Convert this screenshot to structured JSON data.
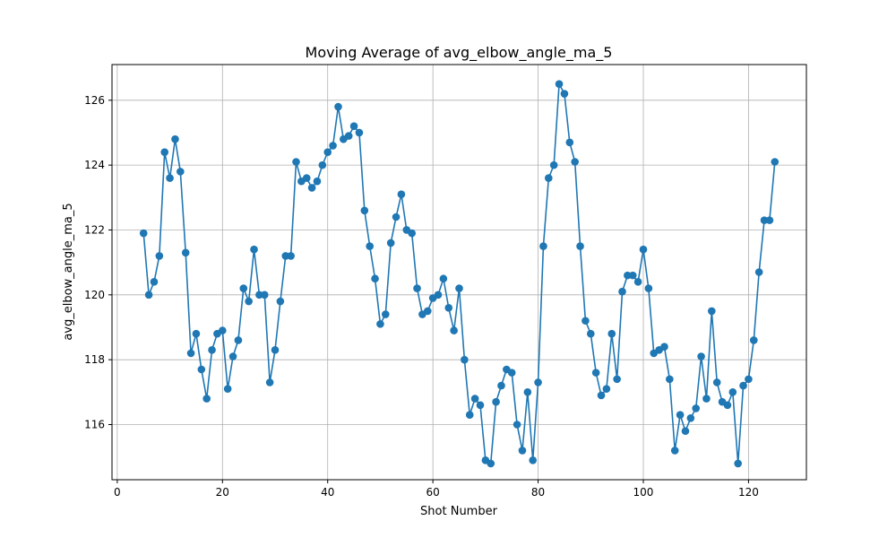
{
  "chart_data": {
    "type": "line",
    "title": "Moving Average of avg_elbow_angle_ma_5",
    "xlabel": "Shot Number",
    "ylabel": "avg_elbow_angle_ma_5",
    "xlim": [
      -1,
      131
    ],
    "ylim": [
      114.3,
      127.1
    ],
    "x_ticks": [
      0,
      20,
      40,
      60,
      80,
      100,
      120
    ],
    "y_ticks": [
      116,
      118,
      120,
      122,
      124,
      126
    ],
    "grid": true,
    "legend": "none",
    "line_color": "#1f77b4",
    "marker": "circle",
    "x": [
      5,
      6,
      7,
      8,
      9,
      10,
      11,
      12,
      13,
      14,
      15,
      16,
      17,
      18,
      19,
      20,
      21,
      22,
      23,
      24,
      25,
      26,
      27,
      28,
      29,
      30,
      31,
      32,
      33,
      34,
      35,
      36,
      37,
      38,
      39,
      40,
      41,
      42,
      43,
      44,
      45,
      46,
      47,
      48,
      49,
      50,
      51,
      52,
      53,
      54,
      55,
      56,
      57,
      58,
      59,
      60,
      61,
      62,
      63,
      64,
      65,
      66,
      67,
      68,
      69,
      70,
      71,
      72,
      73,
      74,
      75,
      76,
      77,
      78,
      79,
      80,
      81,
      82,
      83,
      84,
      85,
      86,
      87,
      88,
      89,
      90,
      91,
      92,
      93,
      94,
      95,
      96,
      97,
      98,
      99,
      100,
      101,
      102,
      103,
      104,
      105,
      106,
      107,
      108,
      109,
      110,
      111,
      112,
      113,
      114,
      115,
      116,
      117,
      118,
      119,
      120,
      121,
      122,
      123,
      124,
      125
    ],
    "y": [
      121.9,
      120.0,
      120.4,
      121.2,
      124.4,
      123.6,
      124.8,
      123.8,
      121.3,
      118.2,
      118.8,
      117.7,
      116.8,
      118.3,
      118.8,
      118.9,
      117.1,
      118.1,
      118.6,
      120.2,
      119.8,
      121.4,
      120.0,
      120.0,
      117.3,
      118.3,
      119.8,
      121.2,
      121.2,
      124.1,
      123.5,
      123.6,
      123.3,
      123.5,
      124.0,
      124.4,
      124.6,
      125.8,
      124.8,
      124.9,
      125.2,
      125.0,
      122.6,
      121.5,
      120.5,
      119.1,
      119.4,
      121.6,
      122.4,
      123.1,
      122.0,
      121.9,
      120.2,
      119.4,
      119.5,
      119.9,
      120.0,
      120.5,
      119.6,
      118.9,
      120.2,
      118.0,
      116.3,
      116.8,
      116.6,
      114.9,
      114.8,
      116.7,
      117.2,
      117.7,
      117.6,
      116.0,
      115.2,
      117.0,
      114.9,
      117.3,
      121.5,
      123.6,
      124.0,
      126.5,
      126.2,
      124.7,
      124.1,
      121.5,
      119.2,
      118.8,
      117.6,
      116.9,
      117.1,
      118.8,
      117.4,
      120.1,
      120.6,
      120.6,
      120.4,
      121.4,
      120.2,
      118.2,
      118.3,
      118.4,
      117.4,
      115.2,
      116.3,
      115.8,
      116.2,
      116.5,
      118.1,
      116.8,
      119.5,
      117.3,
      116.7,
      116.6,
      117.0,
      114.8,
      117.2,
      117.4,
      118.6,
      120.7,
      122.3,
      122.3,
      124.1
    ]
  }
}
